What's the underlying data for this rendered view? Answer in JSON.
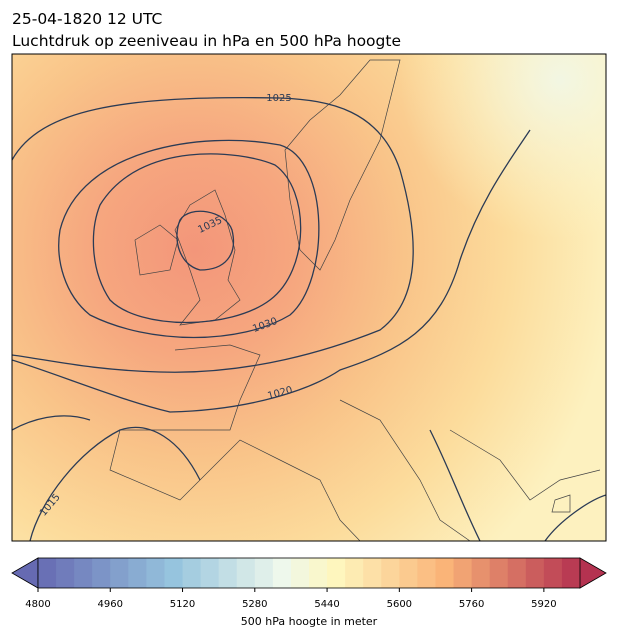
{
  "header": {
    "title_line1": "25-04-1820 12 UTC",
    "title_line2": "Luchtdruk op zeeniveau in hPa en 500 hPa hoogte"
  },
  "isobar_labels": [
    1025,
    1035,
    1030,
    1020,
    1015
  ],
  "colorbar": {
    "label": "500 hPa hoogte in meter",
    "lim": [
      4800,
      6000
    ],
    "ticks": [
      4800,
      4960,
      5120,
      5280,
      5440,
      5600,
      5760,
      5920
    ]
  }
}
